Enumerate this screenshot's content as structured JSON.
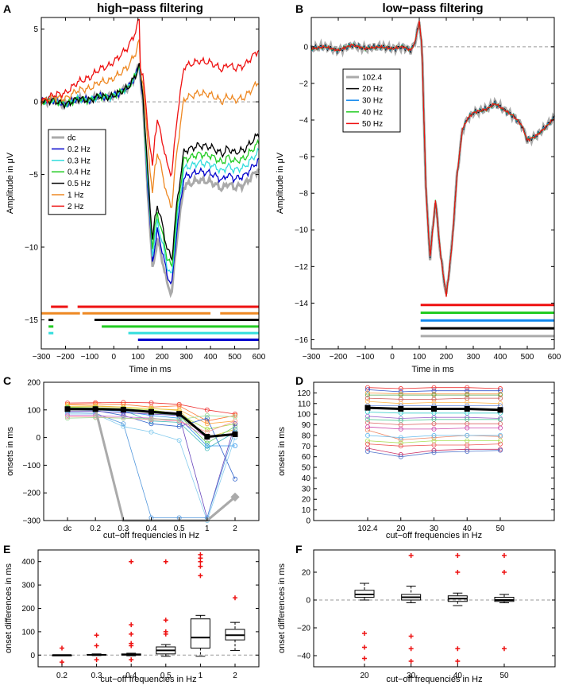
{
  "chart_data": [
    {
      "id": "A",
      "panel_label": "A",
      "type": "line",
      "title": "high−pass filtering",
      "xlabel": "Time in ms",
      "ylabel": "Amplitude in μV",
      "xlim": [
        -300,
        600
      ],
      "ylim": [
        -17,
        5.8
      ],
      "xticks": [
        -300,
        -200,
        -100,
        0,
        100,
        200,
        300,
        400,
        500,
        600
      ],
      "yticks": [
        5,
        0,
        -5,
        -10,
        -15
      ],
      "legend": [
        "dc",
        "0.2 Hz",
        "0.3 Hz",
        "0.4 Hz",
        "0.5 Hz",
        "1 Hz",
        "2 Hz"
      ],
      "colors": [
        "#aaaaaa",
        "#0000cc",
        "#33dddd",
        "#22cc22",
        "#000000",
        "#ee8822",
        "#ee1111"
      ],
      "base_x": [
        -300,
        -250,
        -200,
        -150,
        -100,
        -60,
        -20,
        20,
        60,
        90,
        105,
        120,
        140,
        160,
        180,
        200,
        220,
        240,
        260,
        290,
        320,
        350,
        400,
        450,
        470,
        500,
        540,
        600
      ],
      "base_y": [
        0,
        0.1,
        -0.2,
        0.2,
        0.1,
        0.4,
        0.3,
        0.6,
        1.0,
        1.8,
        2.6,
        0,
        -6,
        -11.5,
        -9.5,
        -10.8,
        -12.5,
        -13.2,
        -9.5,
        -5.8,
        -5.6,
        -5.4,
        -5.5,
        -6.0,
        -5.6,
        -5.9,
        -5.7,
        -4.6
      ],
      "offsets": [
        {
          "pre": 0,
          "post": 0
        },
        {
          "pre": 0,
          "post": 0.6
        },
        {
          "pre": 0,
          "post": 1.2
        },
        {
          "pre": 0,
          "post": 1.8
        },
        {
          "pre": 0,
          "post": 2.4
        },
        {
          "pre": 1.6,
          "post": 6.0
        },
        {
          "pre": 3.1,
          "post": 8.2
        }
      ],
      "onset_bars": [
        {
          "color": "#ee1111",
          "segments": [
            [
              -260,
              -190
            ],
            [
              -150,
              600
            ]
          ]
        },
        {
          "color": "#ee8822",
          "segments": [
            [
              -300,
              -140
            ],
            [
              -130,
              400
            ],
            [
              440,
              600
            ]
          ]
        },
        {
          "color": "#000000",
          "segments": [
            [
              -270,
              -250
            ],
            [
              -80,
              600
            ]
          ]
        },
        {
          "color": "#22cc22",
          "segments": [
            [
              -270,
              -250
            ],
            [
              -50,
              600
            ]
          ]
        },
        {
          "color": "#33dddd",
          "segments": [
            [
              -270,
              -250
            ],
            [
              60,
              600
            ]
          ]
        },
        {
          "color": "#0000cc",
          "segments": [
            [
              100,
              600
            ]
          ]
        }
      ]
    },
    {
      "id": "B",
      "panel_label": "B",
      "type": "line",
      "title": "low−pass filtering",
      "xlabel": "Time in ms",
      "ylabel": "Amplitude in μV",
      "xlim": [
        -300,
        600
      ],
      "ylim": [
        -16.5,
        1.6
      ],
      "xticks": [
        -300,
        -200,
        -100,
        0,
        100,
        200,
        300,
        400,
        500,
        600
      ],
      "yticks": [
        0,
        -2,
        -4,
        -6,
        -8,
        -10,
        -12,
        -14,
        -16
      ],
      "legend": [
        "102.4",
        "20 Hz",
        "30 Hz",
        "40 Hz",
        "50 Hz"
      ],
      "colors": [
        "#aaaaaa",
        "#000000",
        "#1188ee",
        "#22cc22",
        "#ee1111"
      ],
      "curve_x": [
        -300,
        -250,
        -200,
        -150,
        -100,
        -50,
        0,
        40,
        70,
        85,
        95,
        100,
        110,
        125,
        140,
        160,
        180,
        200,
        220,
        240,
        260,
        280,
        300,
        350,
        380,
        400,
        450,
        480,
        500,
        530,
        560,
        600
      ],
      "curve_y": [
        -0.1,
        0.0,
        -0.2,
        0.1,
        -0.1,
        0.0,
        -0.1,
        0.0,
        -0.2,
        0.3,
        1.0,
        1.4,
        0,
        -8,
        -11.5,
        -8.4,
        -11.5,
        -13.6,
        -11,
        -7,
        -4.5,
        -3.9,
        -3.6,
        -3.4,
        -3.1,
        -3.3,
        -3.8,
        -4.3,
        -5.1,
        -4.9,
        -4.5,
        -3.9
      ],
      "onset_bars": [
        {
          "color": "#ee1111",
          "segments": [
            [
              105,
              600
            ]
          ]
        },
        {
          "color": "#22cc22",
          "segments": [
            [
              105,
              600
            ]
          ]
        },
        {
          "color": "#1188ee",
          "segments": [
            [
              105,
              600
            ]
          ]
        },
        {
          "color": "#000000",
          "segments": [
            [
              105,
              600
            ]
          ]
        },
        {
          "color": "#aaaaaa",
          "segments": [
            [
              105,
              600
            ]
          ]
        }
      ]
    },
    {
      "id": "C",
      "panel_label": "C",
      "type": "line",
      "xlabel": "cut−off frequencies in Hz",
      "ylabel": "onsets in ms",
      "categories": [
        "dc",
        "0.2",
        "0.3",
        "0.4",
        "0.5",
        "1",
        "2"
      ],
      "ylim": [
        -300,
        200
      ],
      "yticks": [
        200,
        100,
        0,
        -100,
        -200,
        -300
      ],
      "mean": [
        103,
        103,
        101,
        93,
        86,
        3,
        12
      ],
      "grey": [
        103,
        103,
        -300,
        null,
        null,
        -300,
        -215
      ],
      "subjects": [
        [
          125,
          126,
          127,
          126,
          120,
          100,
          85
        ],
        [
          120,
          122,
          120,
          110,
          115,
          60,
          80
        ],
        [
          118,
          115,
          110,
          105,
          100,
          50,
          60
        ],
        [
          112,
          112,
          110,
          105,
          98,
          0,
          30
        ],
        [
          110,
          108,
          105,
          100,
          85,
          30,
          50
        ],
        [
          108,
          106,
          100,
          90,
          80,
          -20,
          40
        ],
        [
          105,
          104,
          98,
          60,
          55,
          -40,
          20
        ],
        [
          103,
          100,
          95,
          80,
          70,
          -30,
          -30
        ],
        [
          100,
          98,
          80,
          50,
          40,
          70,
          -150
        ],
        [
          95,
          95,
          90,
          85,
          80,
          -290,
          50
        ],
        [
          90,
          88,
          50,
          -290,
          -290,
          -290,
          30
        ],
        [
          85,
          85,
          40,
          20,
          -10,
          -300,
          0
        ],
        [
          80,
          80,
          75,
          70,
          60,
          0,
          10
        ],
        [
          75,
          75,
          70,
          65,
          60,
          20,
          60
        ],
        [
          70,
          72,
          70,
          68,
          65,
          80,
          75
        ]
      ],
      "subject_colors": [
        "#ee3333",
        "#ff7733",
        "#ffaa44",
        "#ddcc33",
        "#aadd44",
        "#66cc66",
        "#44bbbb",
        "#3399ee",
        "#3366cc",
        "#6644bb",
        "#5599dd",
        "#88ccee",
        "#cc66cc",
        "#ff9999",
        "#99dd99"
      ]
    },
    {
      "id": "D",
      "panel_label": "D",
      "type": "line",
      "xlabel": "cut−off frequencies in Hz",
      "ylabel": "onsets in ms",
      "categories": [
        "102.4",
        "20",
        "30",
        "40",
        "50"
      ],
      "ylim": [
        0,
        130
      ],
      "yticks": [
        0,
        10,
        20,
        30,
        40,
        50,
        60,
        70,
        80,
        90,
        100,
        110,
        120
      ],
      "mean": [
        106,
        105,
        105,
        105,
        104
      ],
      "subjects": [
        [
          125,
          124,
          125,
          125,
          124
        ],
        [
          123,
          121,
          122,
          122,
          122
        ],
        [
          120,
          119,
          119,
          119,
          119
        ],
        [
          118,
          118,
          118,
          118,
          118
        ],
        [
          115,
          114,
          114,
          115,
          115
        ],
        [
          112,
          110,
          111,
          111,
          110
        ],
        [
          108,
          108,
          108,
          108,
          108
        ],
        [
          102,
          101,
          101,
          101,
          101
        ],
        [
          98,
          96,
          97,
          97,
          96
        ],
        [
          95,
          94,
          95,
          95,
          95
        ],
        [
          92,
          90,
          91,
          91,
          91
        ],
        [
          88,
          86,
          86,
          87,
          87
        ],
        [
          85,
          76,
          78,
          80,
          79
        ],
        [
          80,
          78,
          80,
          80,
          80
        ],
        [
          75,
          73,
          75,
          75,
          75
        ],
        [
          72,
          70,
          71,
          71,
          72
        ],
        [
          68,
          62,
          66,
          67,
          67
        ],
        [
          65,
          60,
          64,
          65,
          66
        ]
      ],
      "subject_colors": [
        "#ee3333",
        "#3355cc",
        "#ff9944",
        "#55aa55",
        "#cc5555",
        "#ffbb55",
        "#6688dd",
        "#33cccc",
        "#9966cc",
        "#55cc99",
        "#dd6666",
        "#cc44aa",
        "#ee8866",
        "#66bbee",
        "#aadd55",
        "#ee5555",
        "#cc3366",
        "#5577cc"
      ]
    },
    {
      "id": "E",
      "panel_label": "E",
      "type": "box",
      "xlabel": "cut−off frequencies in Hz",
      "ylabel": "onset differences in ms",
      "categories": [
        "0.2",
        "0.3",
        "0.4",
        "0.5",
        "1",
        "2"
      ],
      "ylim": [
        -50,
        450
      ],
      "yticks": [
        400,
        300,
        200,
        100,
        0
      ],
      "boxes": [
        {
          "whislo": 0,
          "q1": 0,
          "med": 0,
          "q3": 0,
          "whishi": 0,
          "fliers": [
            30,
            -30
          ]
        },
        {
          "whislo": -2,
          "q1": 0,
          "med": 1,
          "q3": 3,
          "whishi": 5,
          "fliers": [
            85,
            40,
            -20
          ]
        },
        {
          "whislo": -3,
          "q1": 0,
          "med": 2,
          "q3": 5,
          "whishi": 8,
          "fliers": [
            400,
            130,
            90,
            50,
            40,
            -20
          ]
        },
        {
          "whislo": -5,
          "q1": 5,
          "med": 20,
          "q3": 35,
          "whishi": 45,
          "fliers": [
            400,
            150,
            100,
            90
          ]
        },
        {
          "whislo": -5,
          "q1": 30,
          "med": 75,
          "q3": 155,
          "whishi": 170,
          "fliers": [
            430,
            415,
            400,
            380,
            340
          ]
        },
        {
          "whislo": 20,
          "q1": 65,
          "med": 85,
          "q3": 110,
          "whishi": 140,
          "fliers": [
            245
          ]
        }
      ]
    },
    {
      "id": "F",
      "panel_label": "F",
      "type": "box",
      "xlabel": "cut−off frequencies in Hz",
      "ylabel": "onset differences in ms",
      "categories": [
        "20",
        "30",
        "40",
        "50"
      ],
      "ylim": [
        -48,
        36
      ],
      "yticks": [
        20,
        0,
        -20,
        -40
      ],
      "boxes": [
        {
          "whislo": 0,
          "q1": 2,
          "med": 4,
          "q3": 7,
          "whishi": 12,
          "fliers": [
            -24,
            -34,
            -42
          ]
        },
        {
          "whislo": -2,
          "q1": 0,
          "med": 2,
          "q3": 4,
          "whishi": 10,
          "fliers": [
            32,
            -26,
            -35,
            -44
          ]
        },
        {
          "whislo": -4,
          "q1": -1,
          "med": 1,
          "q3": 3,
          "whishi": 5,
          "fliers": [
            32,
            20,
            -35,
            -44
          ]
        },
        {
          "whislo": -2,
          "q1": -1,
          "med": 0,
          "q3": 2,
          "whishi": 4,
          "fliers": [
            32,
            20,
            -35
          ]
        }
      ]
    }
  ]
}
